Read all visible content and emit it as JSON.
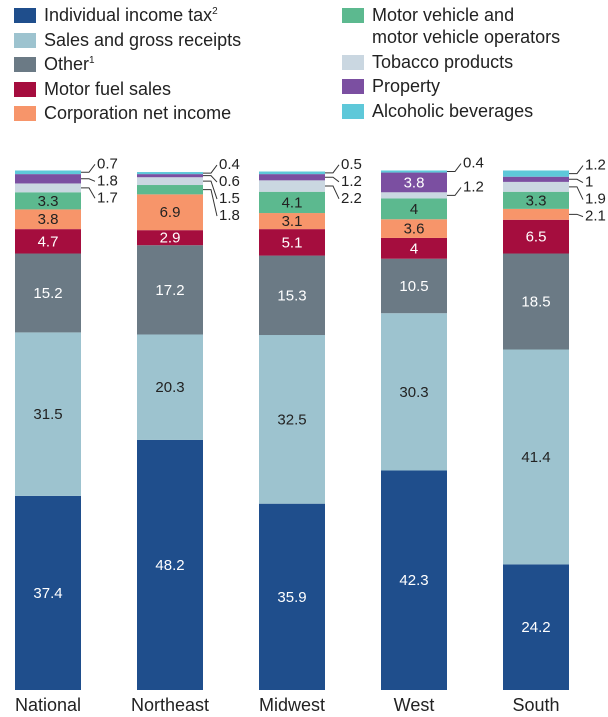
{
  "chart_data": {
    "type": "stacked_bar",
    "categories": [
      "National",
      "Northeast",
      "Midwest",
      "West",
      "South"
    ],
    "ylim": [
      0,
      100
    ],
    "series": [
      {
        "name": "Individual income tax",
        "footnote": "2",
        "color": "#1f4e8c",
        "text_color": "#ffffff",
        "values": [
          37.4,
          48.2,
          35.9,
          42.3,
          24.2
        ]
      },
      {
        "name": "Sales and gross receipts",
        "color": "#9dc3cf",
        "text_color": "#222222",
        "values": [
          31.5,
          20.3,
          32.5,
          30.3,
          41.4
        ]
      },
      {
        "name": "Other",
        "footnote": "1",
        "color": "#6b7a85",
        "text_color": "#ffffff",
        "values": [
          15.2,
          17.2,
          15.3,
          10.5,
          18.5
        ]
      },
      {
        "name": "Motor fuel sales",
        "color": "#a50d3e",
        "text_color": "#ffffff",
        "values": [
          4.7,
          2.9,
          5.1,
          4.0,
          6.5
        ]
      },
      {
        "name": "Corporation net income",
        "color": "#f7956a",
        "text_color": "#222222",
        "values": [
          3.8,
          6.9,
          3.1,
          3.6,
          2.1
        ]
      },
      {
        "name": "Motor vehicle and motor vehicle operators",
        "color": "#5cb98f",
        "text_color": "#222222",
        "values": [
          3.3,
          1.8,
          4.1,
          4.0,
          3.3
        ]
      },
      {
        "name": "Tobacco products",
        "color": "#cad7e1",
        "text_color": "#222222",
        "values": [
          1.7,
          1.5,
          2.2,
          1.2,
          1.9
        ]
      },
      {
        "name": "Property",
        "color": "#7b4fa1",
        "text_color": "#ffffff",
        "values": [
          1.8,
          0.6,
          1.2,
          3.8,
          1.0
        ]
      },
      {
        "name": "Alcoholic beverages",
        "color": "#5ec8d9",
        "text_color": "#222222",
        "values": [
          0.7,
          0.4,
          0.5,
          0.4,
          1.2
        ]
      }
    ]
  }
}
